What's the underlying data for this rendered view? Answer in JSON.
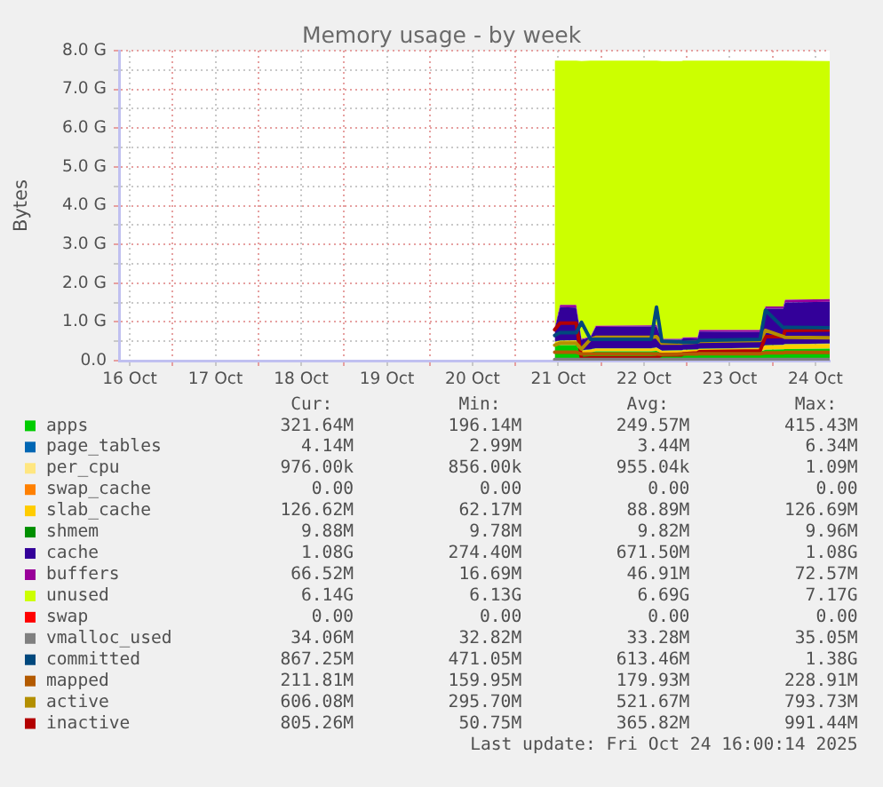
{
  "chart_data": {
    "type": "area",
    "title": "Memory usage - by week",
    "ylabel": "Bytes",
    "stacked": true,
    "grid": true,
    "legend": "bottom",
    "x": [
      "2025-10-21T11:00",
      "2025-10-21T12:30",
      "2025-10-21T17:00",
      "2025-10-21T18:30",
      "2025-10-21T21:00",
      "2025-10-21T22:30",
      "2025-10-22T14:00",
      "2025-10-22T15:30",
      "2025-10-22T17:00",
      "2025-10-22T22:30",
      "2025-10-22T23:00",
      "2025-10-23T03:00",
      "2025-10-23T03:30",
      "2025-10-23T20:30",
      "2025-10-23T22:00",
      "2025-10-24T03:00",
      "2025-10-24T03:30",
      "2025-10-24T16:00"
    ],
    "xlim": [
      "2025-10-16T09:00",
      "2025-10-24T16:00"
    ],
    "xticks": [
      {
        "value": "2025-10-16T12:00",
        "label": "16 Oct"
      },
      {
        "value": "2025-10-17",
        "label": null
      },
      {
        "value": "2025-10-17T12:00",
        "label": "17 Oct"
      },
      {
        "value": "2025-10-18",
        "label": null
      },
      {
        "value": "2025-10-18T12:00",
        "label": "18 Oct"
      },
      {
        "value": "2025-10-19",
        "label": null
      },
      {
        "value": "2025-10-19T12:00",
        "label": "19 Oct"
      },
      {
        "value": "2025-10-20",
        "label": null
      },
      {
        "value": "2025-10-20T12:00",
        "label": "20 Oct"
      },
      {
        "value": "2025-10-21",
        "label": null
      },
      {
        "value": "2025-10-21T12:00",
        "label": "21 Oct"
      },
      {
        "value": "2025-10-22",
        "label": null
      },
      {
        "value": "2025-10-22T12:00",
        "label": "22 Oct"
      },
      {
        "value": "2025-10-23",
        "label": null
      },
      {
        "value": "2025-10-23T12:00",
        "label": "23 Oct"
      },
      {
        "value": "2025-10-24",
        "label": null
      },
      {
        "value": "2025-10-24T12:00",
        "label": "24 Oct"
      }
    ],
    "ylim": [
      0,
      8
    ],
    "yticks": [
      {
        "value": 0,
        "label": "0.0"
      },
      {
        "value": 0.5,
        "label": null
      },
      {
        "value": 1,
        "label": "1.0 G"
      },
      {
        "value": 1.5,
        "label": null
      },
      {
        "value": 2,
        "label": "2.0 G"
      },
      {
        "value": 2.5,
        "label": null
      },
      {
        "value": 3,
        "label": "3.0 G"
      },
      {
        "value": 3.5,
        "label": null
      },
      {
        "value": 4,
        "label": "4.0 G"
      },
      {
        "value": 4.5,
        "label": null
      },
      {
        "value": 5,
        "label": "5.0 G"
      },
      {
        "value": 5.5,
        "label": null
      },
      {
        "value": 6,
        "label": "6.0 G"
      },
      {
        "value": 6.5,
        "label": null
      },
      {
        "value": 7,
        "label": "7.0 G"
      },
      {
        "value": 7.5,
        "label": null
      },
      {
        "value": 8,
        "label": "8.0 G"
      }
    ],
    "series": [
      {
        "name": "apps",
        "color": "#00cc00",
        "values": [
          0.38,
          0.4,
          0.4,
          0.2,
          0.21,
          0.24,
          0.24,
          0.25,
          0.19,
          0.2,
          0.2,
          0.21,
          0.22,
          0.23,
          0.28,
          0.29,
          0.3,
          0.31
        ]
      },
      {
        "name": "page_tables",
        "color": "#0066b3",
        "values": [
          null,
          null,
          null,
          null,
          null,
          null,
          null,
          null,
          null,
          null,
          null,
          null,
          null,
          null,
          null,
          null,
          null,
          null
        ]
      },
      {
        "name": "per_cpu",
        "color": "#ffe680",
        "values": [
          null,
          null,
          null,
          null,
          null,
          null,
          null,
          null,
          null,
          null,
          null,
          null,
          null,
          null,
          null,
          null,
          null,
          null
        ]
      },
      {
        "name": "swap_cache",
        "color": "#ff8000",
        "values": [
          null,
          null,
          null,
          null,
          null,
          null,
          null,
          null,
          null,
          null,
          null,
          null,
          null,
          null,
          null,
          null,
          null,
          null
        ]
      },
      {
        "name": "slab_cache",
        "color": "#ffcc00",
        "values": [
          0.1,
          0.11,
          0.12,
          0.06,
          0.07,
          0.07,
          0.07,
          0.08,
          0.06,
          0.06,
          0.07,
          0.07,
          0.08,
          0.09,
          0.11,
          0.11,
          0.12,
          0.12
        ]
      },
      {
        "name": "shmem",
        "color": "#008f00",
        "values": [
          0.01,
          0.01,
          0.01,
          0.01,
          0.01,
          0.01,
          0.01,
          0.01,
          0.01,
          0.01,
          0.01,
          0.01,
          0.01,
          0.01,
          0.01,
          0.01,
          0.01,
          0.01
        ]
      },
      {
        "name": "cache",
        "color": "#330099",
        "values": [
          0.31,
          0.86,
          0.84,
          0.27,
          0.31,
          0.55,
          0.56,
          0.55,
          0.28,
          0.27,
          0.3,
          0.28,
          0.44,
          0.41,
          0.94,
          0.93,
          1.07,
          1.08
        ]
      },
      {
        "name": "buffers",
        "color": "#990099",
        "values": [
          0.05,
          0.06,
          0.07,
          0.02,
          0.02,
          0.03,
          0.03,
          0.04,
          0.02,
          0.02,
          0.02,
          0.03,
          0.04,
          0.05,
          0.06,
          0.06,
          0.07,
          0.07
        ]
      },
      {
        "name": "unused",
        "color": "#ccff00",
        "values": [
          6.89,
          6.3,
          6.3,
          7.17,
          7.12,
          6.84,
          6.83,
          6.81,
          7.17,
          7.17,
          7.14,
          7.14,
          6.95,
          6.95,
          6.34,
          6.34,
          6.17,
          6.14
        ]
      },
      {
        "name": "swap",
        "color": "#ff0000",
        "values": [
          null,
          null,
          null,
          null,
          null,
          null,
          null,
          null,
          null,
          null,
          null,
          null,
          null,
          null,
          null,
          null,
          null,
          null
        ]
      },
      {
        "name": "vmalloc_used",
        "color": "#808080",
        "type": "line",
        "values": [
          0.03,
          0.03,
          0.03,
          0.03,
          0.03,
          0.03,
          0.03,
          0.03,
          0.03,
          0.03,
          0.03,
          0.03,
          0.03,
          0.03,
          0.03,
          0.03,
          0.03,
          0.03
        ]
      },
      {
        "name": "committed",
        "color": "#00487d",
        "type": "line",
        "values": [
          0.65,
          0.72,
          0.72,
          0.99,
          0.55,
          0.55,
          0.55,
          1.38,
          0.5,
          0.48,
          0.47,
          0.48,
          0.52,
          0.55,
          1.3,
          0.85,
          0.86,
          0.85
        ]
      },
      {
        "name": "mapped",
        "color": "#b35a00",
        "type": "line",
        "values": [
          0.22,
          0.22,
          0.22,
          0.17,
          0.17,
          0.17,
          0.17,
          0.17,
          0.16,
          0.17,
          0.17,
          0.17,
          0.18,
          0.18,
          0.2,
          0.2,
          0.21,
          0.21
        ]
      },
      {
        "name": "active",
        "color": "#b38f00",
        "type": "line",
        "values": [
          0.4,
          0.45,
          0.45,
          0.3,
          0.55,
          0.6,
          0.6,
          0.62,
          0.45,
          0.45,
          0.46,
          0.48,
          0.5,
          0.52,
          0.78,
          0.62,
          0.6,
          0.59
        ]
      },
      {
        "name": "inactive",
        "color": "#b30000",
        "type": "line",
        "values": [
          0.8,
          0.97,
          0.97,
          0.05,
          0.07,
          0.07,
          0.07,
          0.08,
          0.15,
          0.15,
          0.18,
          0.2,
          0.23,
          0.25,
          0.62,
          0.62,
          0.78,
          0.79
        ]
      }
    ],
    "annotations": [
      "Cur:",
      "Min:",
      "Avg:",
      "Max:",
      "321.64M",
      "196.14M",
      "249.57M",
      "415.43M",
      "4.14M",
      "2.99M",
      "3.44M",
      "6.34M",
      "976.00k",
      "856.00k",
      "955.04k",
      "1.09M",
      "0.00",
      "0.00",
      "0.00",
      "0.00",
      "126.62M",
      "62.17M",
      "88.89M",
      "126.69M",
      "9.88M",
      "9.78M",
      "9.82M",
      "9.96M",
      "1.08G",
      "274.40M",
      "671.50M",
      "1.08G",
      "66.52M",
      "16.69M",
      "46.91M",
      "72.57M",
      "6.14G",
      "6.13G",
      "6.69G",
      "7.17G",
      "0.00",
      "0.00",
      "0.00",
      "0.00",
      "34.06M",
      "32.82M",
      "33.28M",
      "35.05M",
      "867.25M",
      "471.05M",
      "613.46M",
      "1.38G",
      "211.81M",
      "159.95M",
      "179.93M",
      "228.91M",
      "606.08M",
      "295.70M",
      "521.67M",
      "793.73M",
      "805.26M",
      "50.75M",
      "365.82M",
      "991.44M",
      "Last update: Fri Oct 24 16:00:14 2025"
    ]
  }
}
